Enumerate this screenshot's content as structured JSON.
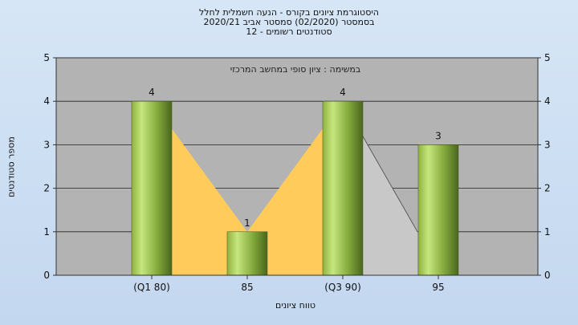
{
  "header": {
    "title_line1": "היסטוגרמת ציונים בקורס - הנעה חשמלית לחלל",
    "title_line2": "בסמסטר  (02/2020)  סמסטר אביב 2020/21",
    "title_line3": "סטודנטים רשומים - 12"
  },
  "chart_data": {
    "type": "bar",
    "title": "היסטוגרמת ציונים בקורס - הנעה חשמלית לחלל",
    "subtitle": "בסמסטר  (02/2020)  סמסטר אביב 2020/21",
    "annotation": "במשימה : ציון סופי במחשב המרכזי",
    "xlabel": "טווח ציונים",
    "ylabel": "מספר סטודנטים",
    "categories": [
      "(Q1 80)",
      "85",
      "(Q3 90)",
      "95"
    ],
    "values": [
      4,
      1,
      4,
      3
    ],
    "ylim": [
      0,
      5
    ],
    "yticks": [
      0,
      1,
      2,
      3,
      4,
      5
    ],
    "grid": true,
    "colors": {
      "plot_bg": "#b3b3b3",
      "iqr_fill": "#ffcc5c",
      "tail_fill": "#c8c8c8",
      "bar_light": "#c3e27a",
      "bar_dark": "#4e6b20"
    }
  }
}
